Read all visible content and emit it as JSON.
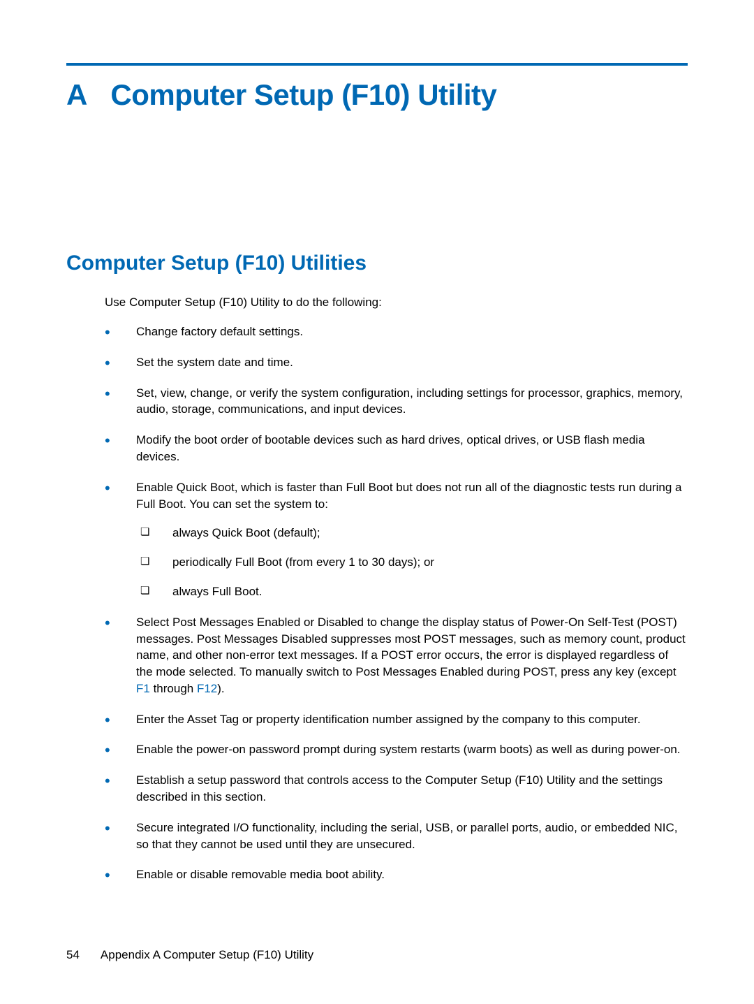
{
  "page": {
    "chapter_label": "A",
    "chapter_title": "Computer Setup (F10) Utility",
    "subheading": "Computer Setup (F10) Utilities",
    "intro": "Use Computer Setup (F10) Utility to do the following:",
    "bullets": [
      {
        "text": "Change factory default settings."
      },
      {
        "text": "Set the system date and time."
      },
      {
        "text": "Set, view, change, or verify the system configuration, including settings for processor, graphics, memory, audio, storage, communications, and input devices."
      },
      {
        "text": "Modify the boot order of bootable devices such as hard drives, optical drives, or USB flash media devices."
      },
      {
        "text": "Enable Quick Boot, which is faster than Full Boot but does not run all of the diagnostic tests run during a Full Boot. You can set the system to:",
        "sub": [
          "always Quick Boot (default);",
          "periodically Full Boot (from every 1 to 30 days); or",
          "always Full Boot."
        ]
      },
      {
        "text_pre": "Select Post Messages Enabled or Disabled to change the display status of Power-On Self-Test (POST) messages. Post Messages Disabled suppresses most POST messages, such as memory count, product name, and other non-error text messages. If a POST error occurs, the error is displayed regardless of the mode selected. To manually switch to Post Messages Enabled during POST, press any key (except ",
        "link1": "F1",
        "text_mid": " through ",
        "link2": "F12",
        "text_post": ")."
      },
      {
        "text": "Enter the Asset Tag or property identification number assigned by the company to this computer."
      },
      {
        "text": "Enable the power-on password prompt during system restarts (warm boots) as well as during power-on."
      },
      {
        "text": "Establish a setup password that controls access to the Computer Setup (F10) Utility and the settings described in this section."
      },
      {
        "text": "Secure integrated I/O functionality, including the serial, USB, or parallel ports, audio, or embedded NIC, so that they cannot be used until they are unsecured."
      },
      {
        "text": "Enable or disable removable media boot ability."
      }
    ],
    "footer": {
      "page_number": "54",
      "appendix_label": "Appendix A   Computer Setup (F10) Utility"
    },
    "colors": {
      "accent": "#0068b3",
      "text": "#000000",
      "background": "#ffffff"
    },
    "typography": {
      "chapter_fontsize": 42,
      "subheading_fontsize": 30,
      "body_fontsize": 17,
      "font_family": "Arial, Helvetica, sans-serif"
    }
  }
}
